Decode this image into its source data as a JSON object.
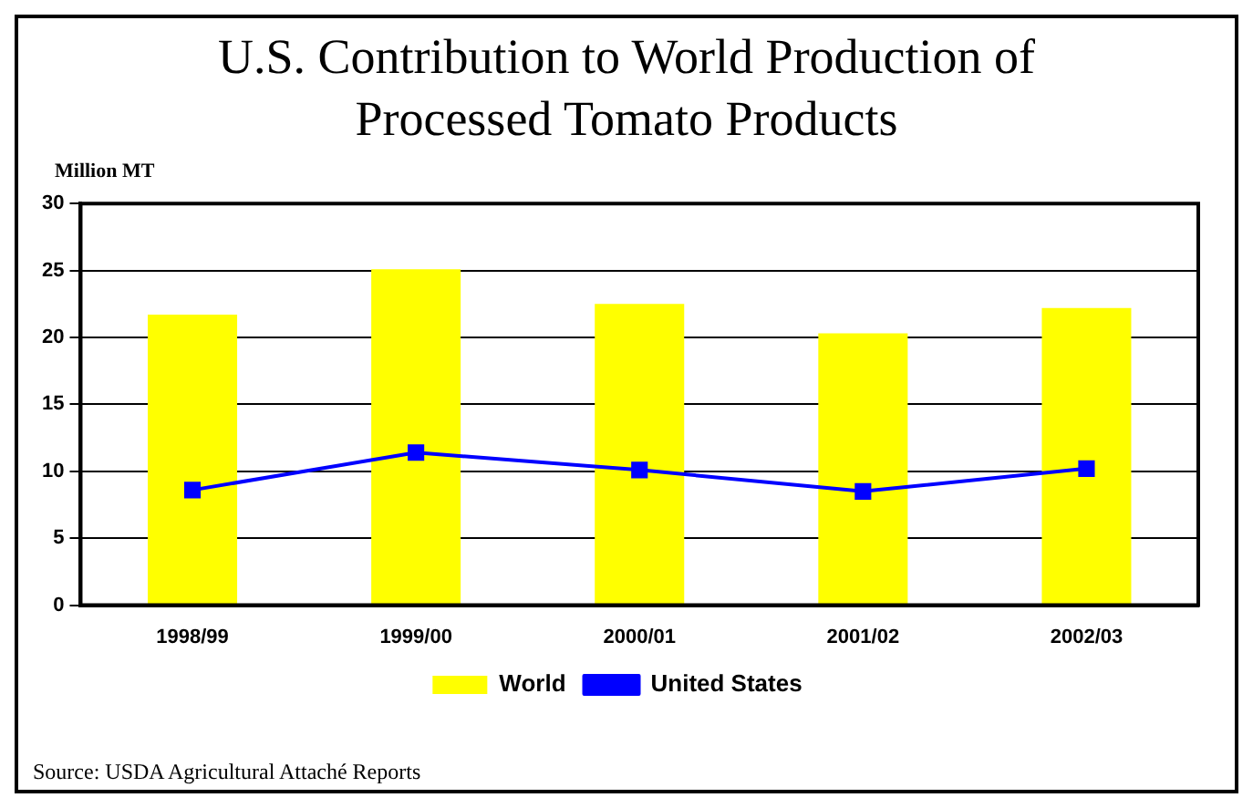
{
  "chart_data": {
    "type": "bar",
    "title": "U.S. Contribution to World Production of Processed Tomato Products",
    "ylabel": "Million MT",
    "categories": [
      "1998/99",
      "1999/00",
      "2000/01",
      "2001/02",
      "2002/03"
    ],
    "series": [
      {
        "name": "World",
        "color": "#ffff00",
        "values": [
          21.7,
          25.1,
          22.5,
          20.3,
          22.2
        ]
      },
      {
        "name": "United States",
        "type": "line",
        "color": "#0000ff",
        "values": [
          8.6,
          11.4,
          10.1,
          8.5,
          10.2
        ]
      }
    ],
    "ylim": [
      0,
      30
    ],
    "yticks": [
      0,
      5,
      10,
      15,
      20,
      25,
      30
    ],
    "grid": "y",
    "legend": "bottom",
    "marker": "square",
    "annotations": [
      "Source: USDA Agricultural Attaché Reports"
    ]
  }
}
